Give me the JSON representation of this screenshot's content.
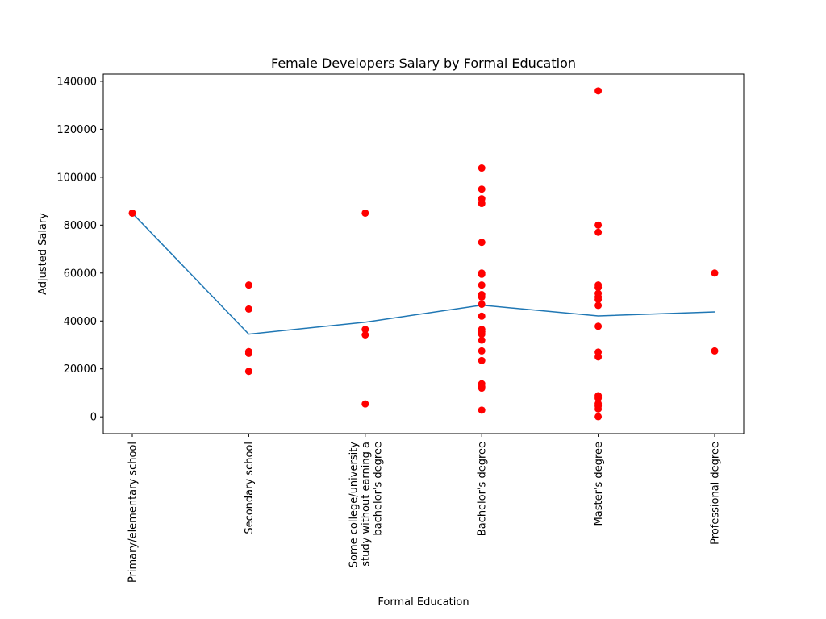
{
  "chart_data": {
    "type": "scatter",
    "title": "Female Developers Salary by Formal Education",
    "xlabel": "Formal Education",
    "ylabel": "Adjusted Salary",
    "ylim": [
      -7000,
      143000
    ],
    "yticks": [
      0,
      20000,
      40000,
      60000,
      80000,
      100000,
      120000,
      140000
    ],
    "grid": false,
    "categories": [
      [
        "Primary/elementary school"
      ],
      [
        "Secondary school"
      ],
      [
        "Some college/university",
        "study without earning a",
        "bachelor's degree"
      ],
      [
        "Bachelor's degree"
      ],
      [
        "Master's degree"
      ],
      [
        "Professional degree"
      ]
    ],
    "series": [
      {
        "type": "scatter",
        "color": "#ff0000",
        "points": [
          [
            0,
            85000
          ],
          [
            1,
            55000
          ],
          [
            1,
            45000
          ],
          [
            1,
            27200
          ],
          [
            1,
            26500
          ],
          [
            1,
            19000
          ],
          [
            2,
            85000
          ],
          [
            2,
            36500
          ],
          [
            2,
            34200
          ],
          [
            2,
            5400
          ],
          [
            3,
            103800
          ],
          [
            3,
            95000
          ],
          [
            3,
            91000
          ],
          [
            3,
            89000
          ],
          [
            3,
            72800
          ],
          [
            3,
            60000
          ],
          [
            3,
            59500
          ],
          [
            3,
            55000
          ],
          [
            3,
            51000
          ],
          [
            3,
            50000
          ],
          [
            3,
            47000
          ],
          [
            3,
            42000
          ],
          [
            3,
            36500
          ],
          [
            3,
            35500
          ],
          [
            3,
            34500
          ],
          [
            3,
            32000
          ],
          [
            3,
            27500
          ],
          [
            3,
            23500
          ],
          [
            3,
            13800
          ],
          [
            3,
            12500
          ],
          [
            3,
            12000
          ],
          [
            3,
            2800
          ],
          [
            4,
            136000
          ],
          [
            4,
            80000
          ],
          [
            4,
            77000
          ],
          [
            4,
            55000
          ],
          [
            4,
            54000
          ],
          [
            4,
            51500
          ],
          [
            4,
            50000
          ],
          [
            4,
            49000
          ],
          [
            4,
            46500
          ],
          [
            4,
            37800
          ],
          [
            4,
            27000
          ],
          [
            4,
            25000
          ],
          [
            4,
            8800
          ],
          [
            4,
            7800
          ],
          [
            4,
            5500
          ],
          [
            4,
            4500
          ],
          [
            4,
            3300
          ],
          [
            4,
            100
          ],
          [
            5,
            60000
          ],
          [
            5,
            27500
          ]
        ]
      },
      {
        "type": "line",
        "color": "#1f77b4",
        "values": [
          85000,
          34500,
          39500,
          46600,
          42100,
          43800
        ]
      }
    ]
  }
}
